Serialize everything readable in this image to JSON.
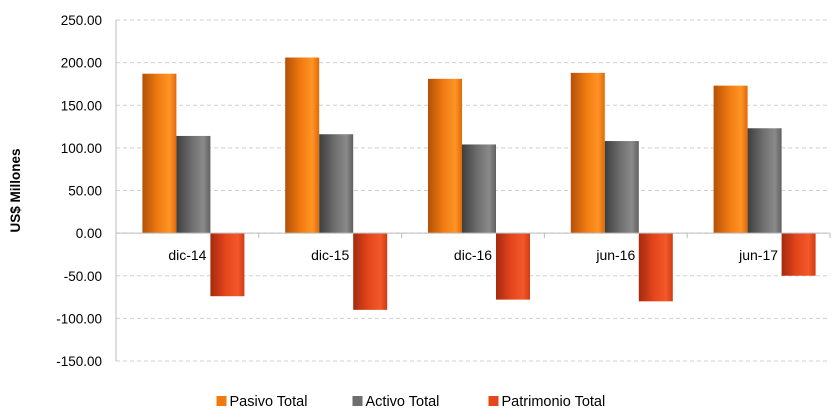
{
  "chart_data": {
    "type": "bar",
    "ylabel": "US$ Millones",
    "xlabel": "",
    "ylim": [
      -150,
      250
    ],
    "ytick_step": 50,
    "grid": true,
    "legend_placement": "bottom",
    "categories": [
      "dic-14",
      "dic-15",
      "dic-16",
      "jun-16",
      "jun-17"
    ],
    "series": [
      {
        "name": "Pasivo Total",
        "color": "#F07A10",
        "values": [
          187,
          206,
          181,
          188,
          173
        ]
      },
      {
        "name": "Activo Total",
        "color": "#6E6E6E",
        "values": [
          114,
          116,
          104,
          108,
          123
        ]
      },
      {
        "name": "Patrimonio Total",
        "color": "#E5461C",
        "values": [
          -74,
          -90,
          -78,
          -80,
          -50
        ]
      }
    ]
  }
}
